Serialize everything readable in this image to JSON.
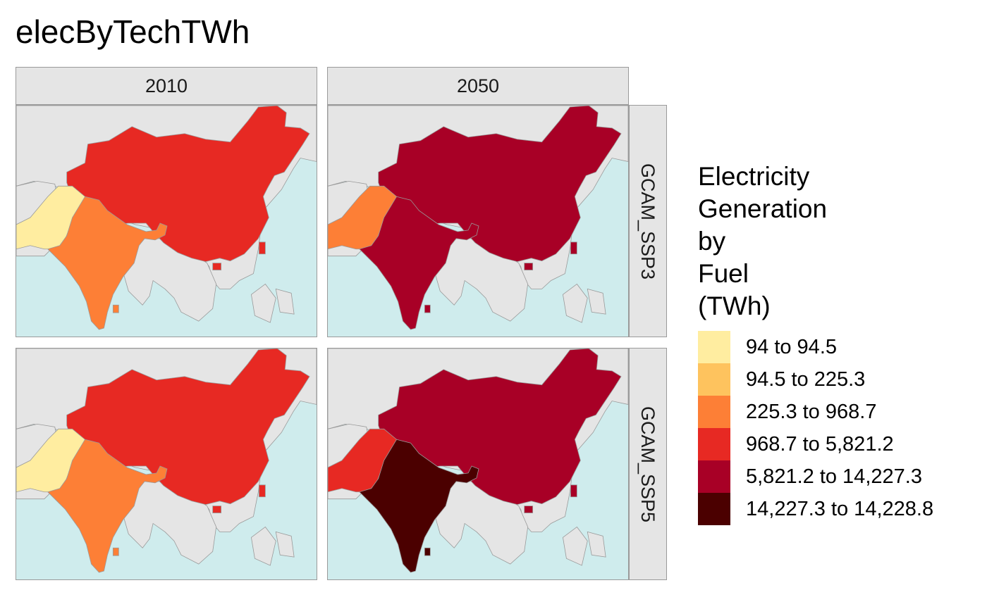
{
  "title": "elecByTechTWh",
  "columns": [
    "2010",
    "2050"
  ],
  "rows": [
    "GCAM_SSP3",
    "GCAM_SSP5"
  ],
  "legend": {
    "title_lines": [
      "Electricity",
      "Generation",
      "by",
      "Fuel",
      "(TWh)"
    ],
    "items": [
      {
        "label": "94 to 94.5",
        "color": "#ffeda0"
      },
      {
        "label": "94.5 to 225.3",
        "color": "#fec35e"
      },
      {
        "label": "225.3 to 968.7",
        "color": "#fd7f36"
      },
      {
        "label": "968.7 to 5,821.2",
        "color": "#e72923"
      },
      {
        "label": "5,821.2 to 14,227.3",
        "color": "#a80026"
      },
      {
        "label": "14,227.3 to 14,228.8",
        "color": "#4b0000"
      }
    ]
  },
  "colors": {
    "ocean": "#cfeced",
    "land": "#e5e5e5",
    "border": "#9a9a9a"
  },
  "panels": [
    {
      "row": "GCAM_SSP3",
      "col": "2010",
      "china": "#e72923",
      "india": "#fd7f36",
      "pakistan": "#ffeda0"
    },
    {
      "row": "GCAM_SSP3",
      "col": "2050",
      "china": "#a80026",
      "india": "#a80026",
      "pakistan": "#fd7f36"
    },
    {
      "row": "GCAM_SSP5",
      "col": "2010",
      "china": "#e72923",
      "india": "#fd7f36",
      "pakistan": "#ffeda0"
    },
    {
      "row": "GCAM_SSP5",
      "col": "2050",
      "china": "#a80026",
      "india": "#4b0000",
      "pakistan": "#e72923"
    }
  ]
}
